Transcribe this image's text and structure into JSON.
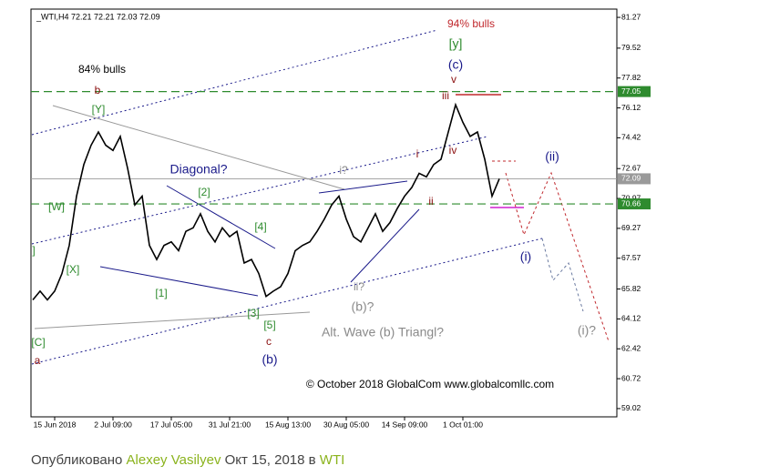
{
  "chart_data": {
    "type": "line",
    "title": "_WTI,H4  72.21 72.21 72.03 72.09",
    "color": "#000000",
    "categories": [
      null,
      null,
      null,
      "15 Jun 2018",
      null,
      null,
      null,
      null,
      null,
      null,
      null,
      "2 Jul 09:00",
      null,
      null,
      null,
      null,
      null,
      null,
      null,
      "17 Jul 05:00",
      null,
      null,
      null,
      null,
      null,
      null,
      null,
      "31 Jul 21:00",
      null,
      null,
      null,
      null,
      null,
      null,
      null,
      "15 Aug 13:00",
      null,
      null,
      null,
      null,
      null,
      null,
      null,
      "30 Aug 05:00",
      null,
      null,
      null,
      null,
      null,
      null,
      null,
      "14 Sep 09:00",
      null,
      null,
      null,
      null,
      null,
      null,
      null,
      "1 Oct 01:00",
      null,
      null,
      null,
      null,
      null,
      null,
      null,
      null,
      null,
      null,
      null,
      null,
      null,
      null,
      null,
      null,
      null,
      null,
      null,
      null
    ],
    "values": [
      65.2,
      65.7,
      65.2,
      65.7,
      66.7,
      68.3,
      71.1,
      72.9,
      74.0,
      74.75,
      74.0,
      73.7,
      74.5,
      72.7,
      70.6,
      71.1,
      68.3,
      67.5,
      68.3,
      68.5,
      68.0,
      69.1,
      69.3,
      70.1,
      69.1,
      68.5,
      69.3,
      68.8,
      69.1,
      67.3,
      67.5,
      66.7,
      65.4,
      65.7,
      65.95,
      66.7,
      68.0,
      68.3,
      68.5,
      69.1,
      69.8,
      70.6,
      71.1,
      69.8,
      68.8,
      68.5,
      69.3,
      70.1,
      69.1,
      69.6,
      70.4,
      71.1,
      71.6,
      72.4,
      72.2,
      72.9,
      73.2,
      74.75,
      76.3,
      75.3,
      74.5,
      74.75,
      73.2,
      71.1,
      72.09,
      null,
      null,
      null,
      null,
      null,
      null,
      null,
      null,
      null,
      null,
      null,
      null,
      null,
      null,
      null
    ],
    "ylim": [
      58.55,
      81.74
    ],
    "yticks": [
      81.27,
      79.52,
      77.82,
      76.12,
      74.42,
      72.67,
      70.97,
      69.27,
      67.57,
      65.82,
      64.12,
      62.42,
      60.72,
      59.02
    ],
    "levels": [
      {
        "value": 77.05,
        "color": "#2e8b2e"
      },
      {
        "value": 72.09,
        "color": "#9a9a9a"
      },
      {
        "value": 70.66,
        "color": "#2e8b2e"
      }
    ],
    "annotations": [
      {
        "text": "84% bulls",
        "color": "#000000"
      },
      {
        "text": "94% bulls",
        "color": "#c0282d"
      },
      {
        "text": "[y]",
        "color": "#2e8b2e"
      },
      {
        "text": "(c)",
        "color": "#1a1a8a"
      },
      {
        "text": "v",
        "color": "#8b1010"
      },
      {
        "text": "iii",
        "color": "#8b1010"
      },
      {
        "text": "iv",
        "color": "#8b1010"
      },
      {
        "text": "i",
        "color": "#8b1010"
      },
      {
        "text": "ii",
        "color": "#8b1010"
      },
      {
        "text": "(ii)",
        "color": "#1a1a8a"
      },
      {
        "text": "(i)",
        "color": "#1a1a8a"
      },
      {
        "text": "(i)?",
        "color": "#8a8a8a"
      },
      {
        "text": "b",
        "color": "#8b1010"
      },
      {
        "text": "[Y]",
        "color": "#2e8b2e"
      },
      {
        "text": "[W]",
        "color": "#2e8b2e"
      },
      {
        "text": "[X]",
        "color": "#2e8b2e"
      },
      {
        "text": "Diagonal?",
        "color": "#1a1a8a"
      },
      {
        "text": "[2]",
        "color": "#2e8b2e"
      },
      {
        "text": "[4]",
        "color": "#2e8b2e"
      },
      {
        "text": "[1]",
        "color": "#2e8b2e"
      },
      {
        "text": "[3]",
        "color": "#2e8b2e"
      },
      {
        "text": "[5]",
        "color": "#2e8b2e"
      },
      {
        "text": "c",
        "color": "#8b1010"
      },
      {
        "text": "(b)",
        "color": "#1a1a8a"
      },
      {
        "text": "i?",
        "color": "#8a8a8a"
      },
      {
        "text": "ii?",
        "color": "#8a8a8a"
      },
      {
        "text": "(b)?",
        "color": "#8a8a8a"
      },
      {
        "text": "Alt. Wave (b) Triangl?",
        "color": "#8a8a8a"
      },
      {
        "text": "© October 2018 GlobalCom www.globalcomllc.com",
        "color": "#000000"
      },
      {
        "text": "[C]",
        "color": "#2e8b2e"
      },
      {
        "text": "a",
        "color": "#8b1010"
      },
      {
        "text": "]",
        "color": "#2e8b2e"
      }
    ]
  },
  "footer": {
    "prefix": "Опубликовано",
    "author": "Alexey Vasilyev",
    "date": "Окт 15, 2018 в",
    "symbol": "WTI"
  }
}
